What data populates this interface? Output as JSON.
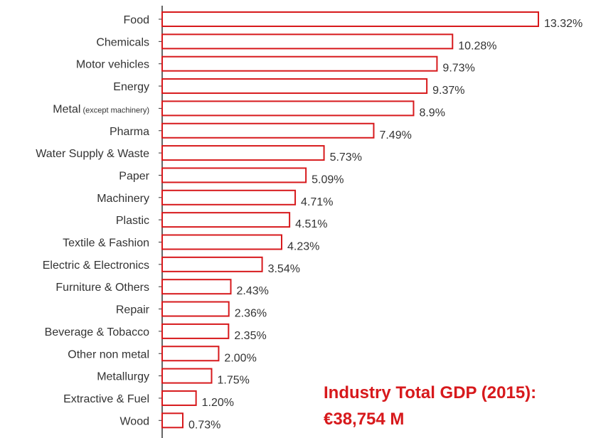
{
  "chart_data": {
    "type": "bar",
    "orientation": "horizontal",
    "categories": [
      "Food",
      "Chemicals",
      "Motor vehicles",
      "Energy",
      "Metal (except machinery)",
      "Pharma",
      "Water Supply & Waste",
      "Paper",
      "Machinery",
      "Plastic",
      "Textile & Fashion",
      "Electric & Electronics",
      "Furniture & Others",
      "Repair",
      "Beverage & Tobacco",
      "Other non metal",
      "Metallurgy",
      "Extractive & Fuel",
      "Wood"
    ],
    "category_labels": [
      {
        "main": "Food",
        "note": ""
      },
      {
        "main": "Chemicals",
        "note": ""
      },
      {
        "main": "Motor vehicles",
        "note": ""
      },
      {
        "main": "Energy",
        "note": ""
      },
      {
        "main": "Metal",
        "note": "(except machinery)"
      },
      {
        "main": "Pharma",
        "note": ""
      },
      {
        "main": "Water Supply & Waste",
        "note": ""
      },
      {
        "main": "Paper",
        "note": ""
      },
      {
        "main": "Machinery",
        "note": ""
      },
      {
        "main": "Plastic",
        "note": ""
      },
      {
        "main": "Textile & Fashion",
        "note": ""
      },
      {
        "main": "Electric & Electronics",
        "note": ""
      },
      {
        "main": "Furniture & Others",
        "note": ""
      },
      {
        "main": "Repair",
        "note": ""
      },
      {
        "main": "Beverage & Tobacco",
        "note": ""
      },
      {
        "main": "Other non metal",
        "note": ""
      },
      {
        "main": "Metallurgy",
        "note": ""
      },
      {
        "main": "Extractive & Fuel",
        "note": ""
      },
      {
        "main": "Wood",
        "note": ""
      }
    ],
    "values": [
      13.32,
      10.28,
      9.73,
      9.37,
      8.9,
      7.49,
      5.73,
      5.09,
      4.71,
      4.51,
      4.23,
      3.54,
      2.43,
      2.36,
      2.35,
      2.0,
      1.75,
      1.2,
      0.73
    ],
    "value_labels": [
      "13.32%",
      "10.28%",
      "9.73%",
      "9.37%",
      "8.9%",
      "7.49%",
      "5.73%",
      "5.09%",
      "4.71%",
      "4.51%",
      "4.23%",
      "3.54%",
      "2.43%",
      "2.36%",
      "2.35%",
      "2.00%",
      "1.75%",
      "1.20%",
      "0.73%"
    ],
    "unit": "%",
    "xlim": [
      0,
      13.32
    ],
    "grid": false,
    "legend": "none",
    "bar_color": "#d7191c",
    "bar_fill": "#ffffff"
  },
  "summary": {
    "title": "Industry Total GDP (2015):",
    "value": "€38,754 M",
    "color": "#d7191c"
  }
}
